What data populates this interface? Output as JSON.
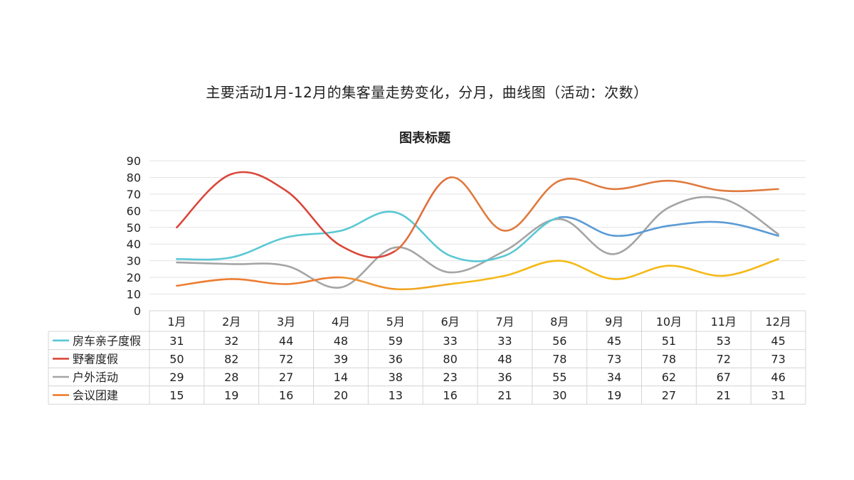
{
  "page": {
    "heading": "主要活动1月-12月的集客量走势变化，分月，曲线图（活动：次数）"
  },
  "chart_data": {
    "type": "line",
    "smooth": true,
    "title": "图表标题",
    "ylim": [
      0,
      90
    ],
    "yticks": [
      0,
      10,
      20,
      30,
      40,
      50,
      60,
      70,
      80,
      90
    ],
    "grid": true,
    "legend": "data-table",
    "categories": [
      "1月",
      "2月",
      "3月",
      "4月",
      "5月",
      "6月",
      "7月",
      "8月",
      "9月",
      "10月",
      "11月",
      "12月"
    ],
    "series": [
      {
        "name": "房车亲子度假",
        "values": [
          31,
          32,
          44,
          48,
          59,
          33,
          33,
          56,
          45,
          51,
          53,
          45
        ],
        "colors": [
          "#5bc8d4",
          "#5bc8d4",
          "#5bc8d4",
          "#5bc8d4",
          "#5bc8d4",
          "#5bc8d4",
          "#5bc8d4",
          "#5b9bd5",
          "#5b9bd5",
          "#5b9bd5",
          "#5b9bd5",
          "#5b9bd5"
        ]
      },
      {
        "name": "野奢度假",
        "values": [
          50,
          82,
          72,
          39,
          36,
          80,
          48,
          78,
          73,
          78,
          72,
          73
        ],
        "colors": [
          "#d9473a",
          "#d9473a",
          "#d9473a",
          "#d9473a",
          "#e06f3c",
          "#e07a3e",
          "#e07a3e",
          "#e07a3e",
          "#e07a3e",
          "#e07a3e",
          "#e07a3e",
          "#e07a3e"
        ]
      },
      {
        "name": "户外活动",
        "values": [
          29,
          28,
          27,
          14,
          38,
          23,
          36,
          55,
          34,
          62,
          67,
          46
        ],
        "colors": [
          "#a5a5a5",
          "#a5a5a5",
          "#a5a5a5",
          "#a5a5a5",
          "#a5a5a5",
          "#a5a5a5",
          "#a5a5a5",
          "#a5a5a5",
          "#a5a5a5",
          "#a5a5a5",
          "#a5a5a5",
          "#a5a5a5"
        ]
      },
      {
        "name": "会议团建",
        "values": [
          15,
          19,
          16,
          20,
          13,
          16,
          21,
          30,
          19,
          27,
          21,
          31
        ],
        "colors": [
          "#ed7d31",
          "#ed7d31",
          "#ed7d31",
          "#ef8f2a",
          "#f2a51f",
          "#f5b916",
          "#f5b916",
          "#f5b916",
          "#f5b916",
          "#f5b916",
          "#f5b916",
          "#f5b916"
        ]
      }
    ]
  }
}
